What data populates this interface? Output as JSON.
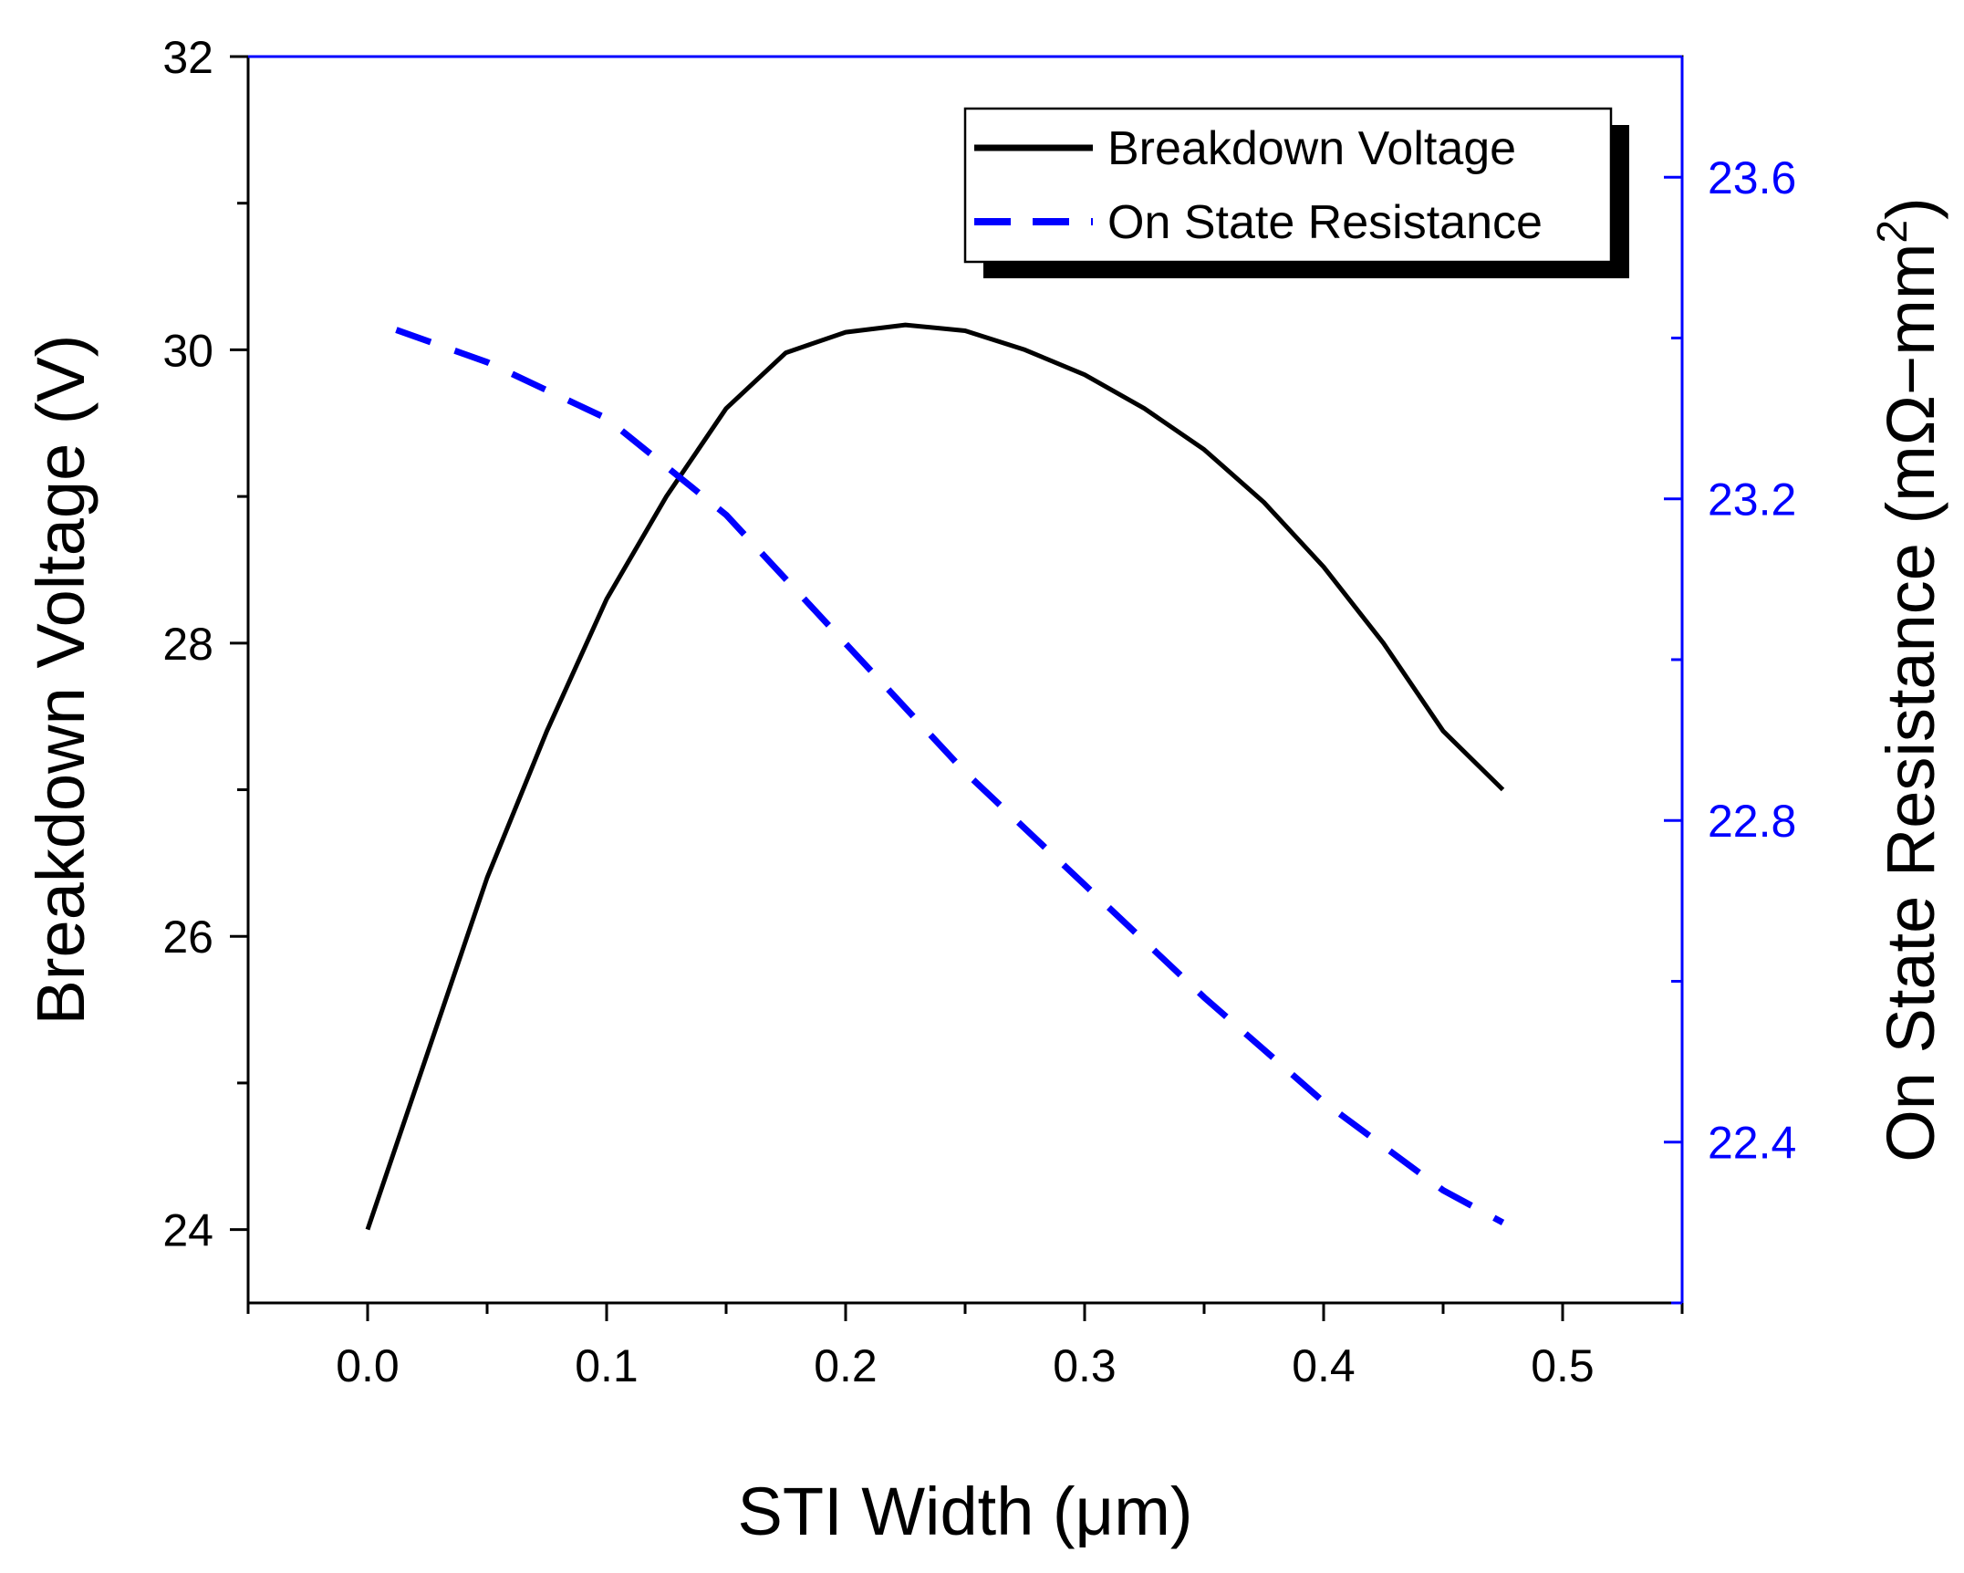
{
  "chart_data": {
    "type": "line",
    "x": [
      0.0,
      0.025,
      0.05,
      0.075,
      0.1,
      0.125,
      0.15,
      0.175,
      0.2,
      0.225,
      0.25,
      0.275,
      0.3,
      0.325,
      0.35,
      0.375,
      0.4,
      0.425,
      0.45,
      0.475
    ],
    "series": [
      {
        "name": "Breakdown Voltage",
        "axis": "left",
        "color": "#000000",
        "dash": "solid",
        "x": [
          0.0,
          0.025,
          0.05,
          0.075,
          0.1,
          0.125,
          0.15,
          0.175,
          0.2,
          0.225,
          0.25,
          0.275,
          0.3,
          0.325,
          0.35,
          0.375,
          0.4,
          0.425,
          0.45,
          0.475
        ],
        "values": [
          24.0,
          25.2,
          26.4,
          27.4,
          28.3,
          29.0,
          29.6,
          29.98,
          30.12,
          30.17,
          30.13,
          30.0,
          29.83,
          29.6,
          29.32,
          28.96,
          28.52,
          28.0,
          27.4,
          27.0
        ]
      },
      {
        "name": "On State Resistance",
        "axis": "right",
        "color": "#0000ff",
        "dash": "dashed",
        "x": [
          0.012,
          0.05,
          0.1,
          0.15,
          0.2,
          0.25,
          0.3,
          0.35,
          0.4,
          0.45,
          0.475
        ],
        "values": [
          23.41,
          23.37,
          23.3,
          23.18,
          23.02,
          22.86,
          22.72,
          22.58,
          22.45,
          22.34,
          22.3
        ]
      }
    ],
    "xlabel": "STI Width (μm)",
    "ylabel_left": "Breakdown Voltage (V)",
    "ylabel_right": "On State Resistance (mΩ−mm",
    "ylabel_right_superscript": "2",
    "ylabel_right_close": ")",
    "xlim": [
      -0.05,
      0.55
    ],
    "ylim_left": [
      23.5,
      32
    ],
    "ylim_right": [
      22.2,
      23.75
    ],
    "x_ticks": [
      0.0,
      0.1,
      0.2,
      0.3,
      0.4,
      0.5
    ],
    "x_tick_labels": [
      "0.0",
      "0.1",
      "0.2",
      "0.3",
      "0.4",
      "0.5"
    ],
    "x_minor_ticks": [
      -0.05,
      0.05,
      0.15,
      0.25,
      0.35,
      0.45,
      0.55
    ],
    "y_left_ticks": [
      24,
      26,
      28,
      30,
      32
    ],
    "y_left_tick_labels": [
      "24",
      "26",
      "28",
      "30",
      "32"
    ],
    "y_left_minor_ticks": [
      25,
      27,
      29,
      31
    ],
    "y_right_ticks": [
      22.4,
      22.8,
      23.2,
      23.6
    ],
    "y_right_tick_labels": [
      "22.4",
      "22.8",
      "23.2",
      "23.6"
    ],
    "y_right_minor_ticks": [
      22.2,
      22.6,
      23.0,
      23.4
    ],
    "right_axis_color": "#0000ff",
    "legend_position": "top-right",
    "legend": [
      "Breakdown Voltage",
      "On State Resistance"
    ],
    "grid": false
  }
}
